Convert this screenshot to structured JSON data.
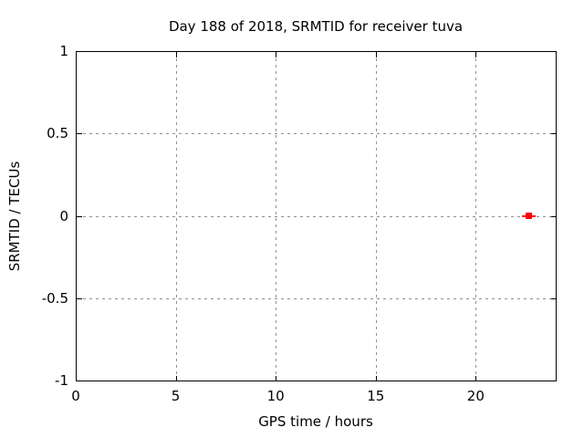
{
  "window": {
    "background": "#ffffff"
  },
  "chart_data": {
    "type": "scatter",
    "title": "Day 188 of 2018, SRMTID for receiver tuva",
    "xlabel": "GPS time / hours",
    "ylabel": "SRMTID / TECUs",
    "xlim": [
      0,
      24
    ],
    "ylim": [
      -1,
      1
    ],
    "xticks": [
      0,
      5,
      10,
      15,
      20
    ],
    "xtick_labels": [
      "0",
      "5",
      "10",
      "15",
      "20"
    ],
    "yticks": [
      -1,
      -0.5,
      0,
      0.5,
      1
    ],
    "ytick_labels": [
      "-1",
      "-0.5",
      "0",
      "0.5",
      "1"
    ],
    "grid": true,
    "grid_style": "dotted",
    "legend": "none",
    "series": [
      {
        "name": "SRMTID",
        "marker": "filled-square-with-horizontal-bar",
        "color": "#ff0000",
        "points": [
          {
            "x": 22.65,
            "y": 0.0,
            "xbar_halfwidth": 0.36
          }
        ]
      }
    ],
    "colors": {
      "axis": "#000000",
      "grid": "#909090",
      "text": "#000000",
      "background": "#ffffff"
    }
  }
}
